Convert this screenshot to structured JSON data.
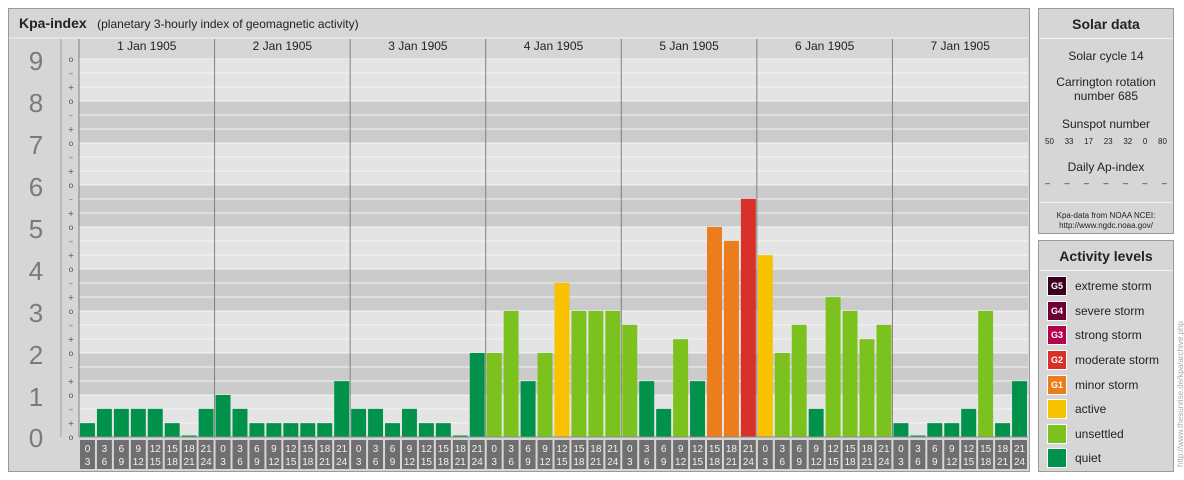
{
  "title": "Kpa-index",
  "subtitle": "(planetary 3-hourly index of geomagnetic activity)",
  "colors": {
    "quiet": "#00914b",
    "unsettled": "#7cc21f",
    "active": "#f8c200",
    "G1": "#ec7d1c",
    "G2": "#d9302a",
    "G3": "#b4004d",
    "G4": "#6e0035",
    "G5": "#3c001f"
  },
  "chart_data": {
    "type": "bar",
    "ylim": [
      0,
      9
    ],
    "y_ticks": [
      "0",
      "1",
      "2",
      "3",
      "4",
      "5",
      "6",
      "7",
      "8",
      "9"
    ],
    "sub_ticks": [
      "o",
      "+",
      "–"
    ],
    "days": [
      "1 Jan 1905",
      "2 Jan 1905",
      "3 Jan 1905",
      "4 Jan 1905",
      "5 Jan 1905",
      "6 Jan 1905",
      "7 Jan 1905"
    ],
    "interval_top": [
      "0",
      "3",
      "6",
      "9",
      "12",
      "15",
      "18",
      "21"
    ],
    "interval_bottom": [
      "3",
      "6",
      "9",
      "12",
      "15",
      "18",
      "21",
      "24"
    ],
    "values": [
      [
        0.33,
        0.67,
        0.67,
        0.67,
        0.67,
        0.33,
        0.0,
        0.67
      ],
      [
        1.0,
        0.67,
        0.33,
        0.33,
        0.33,
        0.33,
        0.33,
        1.33
      ],
      [
        0.67,
        0.67,
        0.33,
        0.67,
        0.33,
        0.33,
        0.0,
        2.0
      ],
      [
        2.0,
        3.0,
        1.33,
        2.0,
        3.67,
        3.0,
        3.0,
        3.0
      ],
      [
        2.67,
        1.33,
        0.67,
        2.33,
        1.33,
        5.0,
        4.67,
        5.67
      ],
      [
        4.33,
        2.0,
        2.67,
        0.67,
        3.33,
        3.0,
        2.33,
        2.67
      ],
      [
        0.33,
        0.0,
        0.33,
        0.33,
        0.67,
        3.0,
        0.33,
        1.33
      ]
    ],
    "levels": [
      [
        "quiet",
        "quiet",
        "quiet",
        "quiet",
        "quiet",
        "quiet",
        "quiet",
        "quiet"
      ],
      [
        "quiet",
        "quiet",
        "quiet",
        "quiet",
        "quiet",
        "quiet",
        "quiet",
        "quiet"
      ],
      [
        "quiet",
        "quiet",
        "quiet",
        "quiet",
        "quiet",
        "quiet",
        "quiet",
        "quiet"
      ],
      [
        "unsettled",
        "unsettled",
        "quiet",
        "unsettled",
        "active",
        "unsettled",
        "unsettled",
        "unsettled"
      ],
      [
        "unsettled",
        "quiet",
        "quiet",
        "unsettled",
        "quiet",
        "G1",
        "G1",
        "G2"
      ],
      [
        "active",
        "unsettled",
        "unsettled",
        "quiet",
        "unsettled",
        "unsettled",
        "unsettled",
        "unsettled"
      ],
      [
        "quiet",
        "quiet",
        "quiet",
        "quiet",
        "quiet",
        "unsettled",
        "quiet",
        "quiet"
      ]
    ]
  },
  "solar": {
    "title": "Solar data",
    "cycle": "Solar cycle 14",
    "carrington_line1": "Carrington rotation",
    "carrington_line2": "number 685",
    "sunspot_label": "Sunspot number",
    "sunspot_values": [
      "50",
      "33",
      "17",
      "23",
      "32",
      "0",
      "80"
    ],
    "ap_label": "Daily Ap-index",
    "ap_values": [
      "–",
      "–",
      "–",
      "–",
      "–",
      "–",
      "–"
    ],
    "source_line1": "Kpa-data from NOAA NCEI:",
    "source_line2": "http://www.ngdc.noaa.gov/"
  },
  "activity": {
    "title": "Activity levels",
    "items": [
      {
        "code": "G5",
        "label": "extreme storm",
        "color": "#3c001f"
      },
      {
        "code": "G4",
        "label": "severe storm",
        "color": "#6e0035"
      },
      {
        "code": "G3",
        "label": "strong storm",
        "color": "#b4004d"
      },
      {
        "code": "G2",
        "label": "moderate storm",
        "color": "#d9302a"
      },
      {
        "code": "G1",
        "label": "minor storm",
        "color": "#ec7d1c"
      },
      {
        "code": "",
        "label": "active",
        "color": "#f8c200"
      },
      {
        "code": "",
        "label": "unsettled",
        "color": "#7cc21f"
      },
      {
        "code": "",
        "label": "quiet",
        "color": "#00914b"
      }
    ]
  },
  "credit": "http://www.thesunrise.de/kpa/archive.php"
}
